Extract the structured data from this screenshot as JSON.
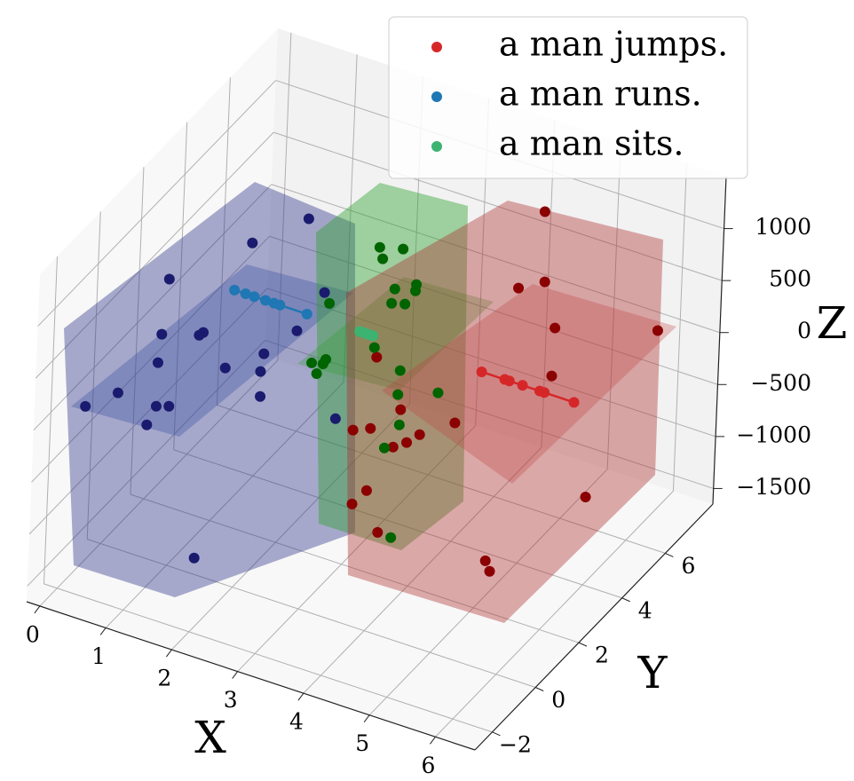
{
  "chart_data": {
    "type": "scatter3d",
    "xlabel": "X",
    "ylabel": "Y",
    "zlabel": "Z",
    "xlim": [
      -0.2,
      6.6
    ],
    "ylim": [
      -2.8,
      8.2
    ],
    "zlim": [
      -1650,
      1500
    ],
    "xticks": [
      0,
      1,
      2,
      3,
      4,
      5,
      6
    ],
    "yticks": [
      {
        "value": -2,
        "label": "−2"
      },
      0,
      2,
      4,
      6
    ],
    "zticks": [
      {
        "value": -1500,
        "label": "−1500"
      },
      {
        "value": -1000,
        "label": "−1000"
      },
      {
        "value": -500,
        "label": "−500"
      },
      0,
      500,
      1000
    ],
    "grid": true,
    "legend": "upper right",
    "series": [
      {
        "name": "a man jumps.",
        "color": "#d62728",
        "scatter_color": "#8b0000",
        "x": [
          4.53,
          4.57,
          4.18,
          4.75,
          4.73,
          6.29,
          5.31,
          5.09,
          5.16,
          4.55,
          3.34,
          3.73,
          3.27,
          3.06,
          3.46,
          3.03,
          3.29,
          3.64,
          3.84,
          4.03
        ],
        "y": [
          6.2,
          6.2,
          6.2,
          6.2,
          6.2,
          6.2,
          6.2,
          2.2,
          2.2,
          2.2,
          2.2,
          2.2,
          2.2,
          2.2,
          2.2,
          2.2,
          2.2,
          2.2,
          2.2,
          2.2
        ],
        "z": [
          1159,
          492,
          350,
          86,
          -380,
          384,
          -1422,
          -1222,
          -1309,
          -9,
          369,
          -54,
          -928,
          -1101,
          -1291,
          -397,
          -326,
          -432,
          -347,
          -231
        ],
        "line": {
          "x": [
            4.3,
            4.65,
            4.72,
            4.92,
            5.18,
            5.25,
            5.7
          ],
          "y": [
            4.2,
            4.2,
            4.2,
            4.2,
            4.2,
            4.2,
            4.2
          ],
          "z": [
            0,
            0,
            0,
            0,
            0,
            0,
            0
          ]
        }
      },
      {
        "name": "a man runs.",
        "color": "#1f77b4",
        "scatter_color": "#1a1a6e",
        "x": [
          1.62,
          0.79,
          0.5,
          0.42,
          1.04,
          0.98,
          0.38,
          1.39,
          1.96,
          1.92,
          1.93,
          1.51,
          1.9,
          -0.06,
          0.42,
          1.0,
          1.19,
          0.87,
          1.66,
          2.14
        ],
        "y": [
          4.2,
          4.2,
          1.2,
          1.2,
          1.2,
          1.2,
          1.2,
          1.2,
          1.2,
          1.2,
          1.2,
          4.2,
          4.2,
          -0.8,
          -0.8,
          -0.8,
          -0.8,
          -0.8,
          -0.8,
          4.2
        ],
        "z": [
          910,
          504,
          740,
          193,
          340,
          301,
          -89,
          72,
          328,
          149,
          -89,
          -191,
          259,
          -171,
          59,
          52,
          92,
          -155,
          -1270,
          -904
        ],
        "line": {
          "x": [
            0.55,
            0.72,
            0.85,
            1.02,
            1.15,
            1.24,
            1.65
          ],
          "y": [
            4.2,
            4.2,
            4.2,
            4.2,
            4.2,
            4.2,
            4.2
          ],
          "z": [
            0,
            0,
            0,
            0,
            0,
            0,
            0
          ]
        }
      },
      {
        "name": "a man sits.",
        "color": "#3cb371",
        "scatter_color": "#006400",
        "x": [
          2.39,
          2.74,
          2.44,
          2.64,
          2.96,
          2.95,
          2.6,
          2.8,
          1.67,
          1.44,
          1.61,
          1.65,
          1.52,
          3.3,
          3.7,
          3.68,
          4.28,
          3.72,
          3.51,
          3.66
        ],
        "y": [
          5.2,
          5.2,
          5.2,
          5.2,
          5.2,
          5.2,
          5.2,
          5.2,
          5.2,
          5.2,
          5.2,
          5.2,
          5.2,
          2.2,
          2.2,
          2.2,
          2.2,
          2.2,
          2.2,
          2.2
        ],
        "z": [
          582,
          639,
          482,
          234,
          343,
          281,
          88,
          122,
          -108,
          -729,
          -702,
          -651,
          -815,
          454,
          316,
          81,
          224,
          -202,
          -468,
          -1299
        ],
        "line": {
          "x": [
            2.45,
            2.5,
            2.55,
            2.6,
            2.65
          ],
          "y": [
            4.2,
            4.2,
            4.2,
            4.2,
            4.2
          ],
          "z": [
            0,
            0,
            0,
            0,
            0
          ]
        }
      }
    ]
  }
}
